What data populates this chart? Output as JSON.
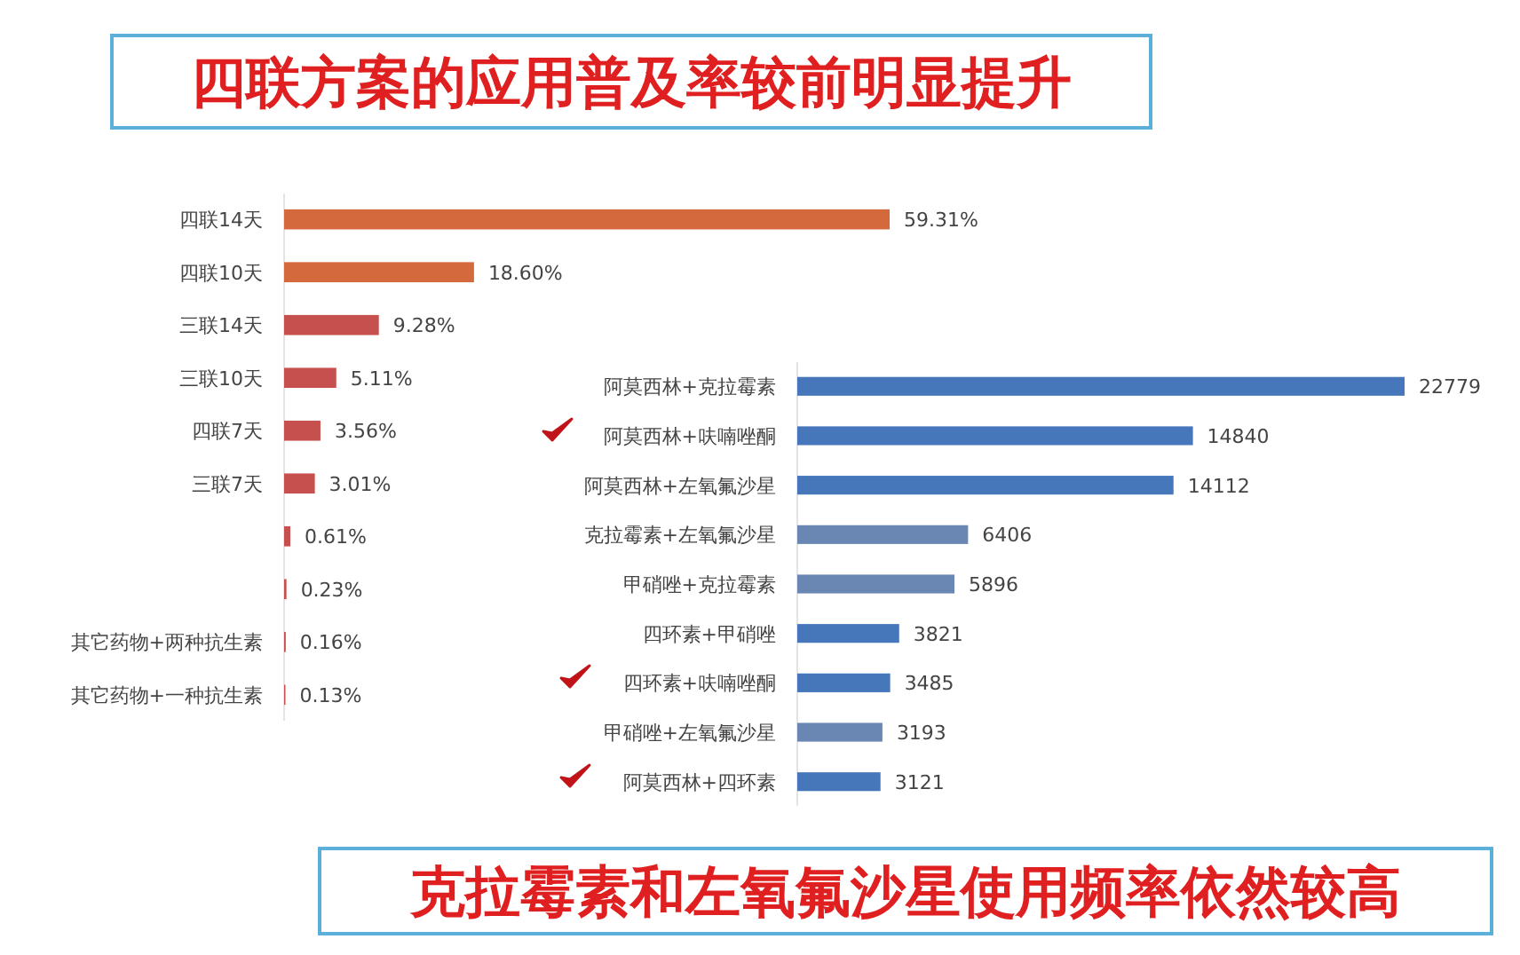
{
  "chart_data": [
    {
      "type": "bar",
      "orientation": "horizontal",
      "title": "四联方案的应用普及率较前明显提升",
      "categories": [
        "四联14天",
        "四联10天",
        "三联14天",
        "三联10天",
        "四联7天",
        "三联7天",
        null,
        null,
        "其它药物+两种抗生素",
        "其它药物+一种抗生素"
      ],
      "values": [
        59.31,
        18.6,
        9.28,
        5.11,
        3.56,
        3.01,
        0.61,
        0.23,
        0.16,
        0.13
      ],
      "value_labels": [
        "59.31%",
        "18.60%",
        "9.28%",
        "5.11%",
        "3.56%",
        "3.01%",
        "0.61%",
        "0.23%",
        "0.16%",
        "0.13%"
      ],
      "colors": [
        "#d46a3c",
        "#d46a3c",
        "#c6504e",
        "#c6504e",
        "#c6504e",
        "#c6504e",
        "#c6504e",
        "#c6504e",
        "#c6504e",
        "#c6504e"
      ]
    },
    {
      "type": "bar",
      "orientation": "horizontal",
      "title": "克拉霉素和左氧氟沙星使用频率依然较高",
      "categories": [
        "阿莫西林+克拉霉素",
        "阿莫西林+呋喃唑酮",
        "阿莫西林+左氧氟沙星",
        "克拉霉素+左氧氟沙星",
        "甲硝唑+克拉霉素",
        "四环素+甲硝唑",
        "四环素+呋喃唑酮",
        "甲硝唑+左氧氟沙星",
        "阿莫西林+四环素"
      ],
      "values": [
        22779,
        14840,
        14112,
        6406,
        5896,
        3821,
        3485,
        3193,
        3121
      ],
      "colors": [
        "#4677ba",
        "#4677ba",
        "#4677ba",
        "#6a87b3",
        "#6a87b3",
        "#4677ba",
        "#4677ba",
        "#6a87b3",
        "#4677ba"
      ],
      "data_labels": true
    }
  ]
}
